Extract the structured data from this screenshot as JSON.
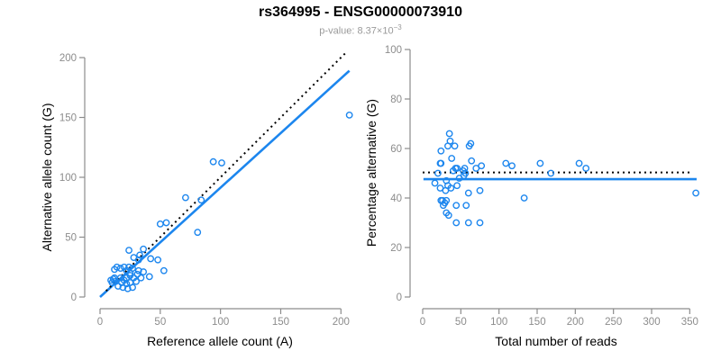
{
  "header": {
    "title": "rs364995 - ENSG00000073910",
    "subtitle_prefix": "p-value: 8.37×10",
    "subtitle_exponent": "−3"
  },
  "colors": {
    "accent_blue": "#1C86EE",
    "dotted_black": "#000000",
    "axis_gray": "#8C8C8C",
    "subtitle_gray": "#9A9A9A"
  },
  "chart_data": [
    {
      "type": "scatter",
      "panel": "left",
      "xlabel": "Reference allele count (A)",
      "ylabel": "Alternative allele count (G)",
      "xlim": [
        0,
        207
      ],
      "ylim": [
        0,
        207
      ],
      "xticks": [
        0,
        50,
        100,
        150,
        200
      ],
      "yticks": [
        0,
        50,
        100,
        150,
        200
      ],
      "grid": false,
      "points": [
        [
          207,
          152
        ],
        [
          94,
          113
        ],
        [
          101,
          112
        ],
        [
          71,
          83
        ],
        [
          84,
          81
        ],
        [
          81,
          54
        ],
        [
          50,
          61
        ],
        [
          55,
          62
        ],
        [
          24,
          39
        ],
        [
          36,
          40
        ],
        [
          28,
          33
        ],
        [
          33,
          35
        ],
        [
          32,
          31
        ],
        [
          42,
          32
        ],
        [
          48,
          31
        ],
        [
          53,
          22
        ],
        [
          41,
          17
        ],
        [
          12,
          23
        ],
        [
          14,
          25
        ],
        [
          17,
          24
        ],
        [
          20,
          25
        ],
        [
          22,
          22
        ],
        [
          24,
          25
        ],
        [
          27,
          24
        ],
        [
          25,
          20
        ],
        [
          32,
          22
        ],
        [
          36,
          21
        ],
        [
          34,
          16
        ],
        [
          31,
          19
        ],
        [
          28,
          16
        ],
        [
          25,
          18
        ],
        [
          22,
          16
        ],
        [
          30,
          13
        ],
        [
          25,
          12
        ],
        [
          22,
          11
        ],
        [
          18,
          12
        ],
        [
          13,
          13
        ],
        [
          10,
          12
        ],
        [
          9,
          14
        ],
        [
          11,
          15
        ],
        [
          12,
          16
        ],
        [
          15,
          9
        ],
        [
          19,
          8
        ],
        [
          23,
          7
        ],
        [
          27,
          8
        ],
        [
          17,
          16
        ],
        [
          20,
          14
        ]
      ],
      "lines": [
        {
          "name": "regression-fit-line",
          "style": "solid",
          "x1": 0,
          "y1": 0,
          "x2": 207,
          "y2": 189
        },
        {
          "name": "identity-line",
          "style": "dotted",
          "x1": 5,
          "y1": 5,
          "x2": 204,
          "y2": 204
        }
      ]
    },
    {
      "type": "scatter",
      "panel": "right",
      "xlabel": "Total number of reads",
      "ylabel": "Percentage alternative (G)",
      "xlim": [
        0,
        360
      ],
      "ylim": [
        0,
        100
      ],
      "xticks": [
        0,
        50,
        100,
        150,
        200,
        250,
        300,
        350
      ],
      "yticks": [
        0,
        20,
        40,
        60,
        80,
        100
      ],
      "grid": false,
      "points": [
        [
          358,
          42
        ],
        [
          205,
          54
        ],
        [
          214,
          52
        ],
        [
          154,
          54
        ],
        [
          168,
          50
        ],
        [
          133,
          40
        ],
        [
          109,
          54
        ],
        [
          117,
          53
        ],
        [
          35,
          66
        ],
        [
          36,
          63
        ],
        [
          33,
          61
        ],
        [
          42,
          61
        ],
        [
          61,
          61
        ],
        [
          63,
          62
        ],
        [
          24,
          59
        ],
        [
          38,
          56
        ],
        [
          64,
          55
        ],
        [
          77,
          53
        ],
        [
          70,
          52
        ],
        [
          45,
          52
        ],
        [
          43,
          52
        ],
        [
          40,
          51
        ],
        [
          53,
          51
        ],
        [
          56,
          50
        ],
        [
          54,
          49
        ],
        [
          55,
          52
        ],
        [
          20,
          50
        ],
        [
          48,
          48
        ],
        [
          16,
          46
        ],
        [
          31,
          47
        ],
        [
          33,
          45
        ],
        [
          37,
          44
        ],
        [
          45,
          45
        ],
        [
          23,
          44
        ],
        [
          30,
          43
        ],
        [
          60,
          42
        ],
        [
          75,
          43
        ],
        [
          23,
          54
        ],
        [
          24,
          54
        ],
        [
          24,
          39
        ],
        [
          26,
          39
        ],
        [
          29,
          38
        ],
        [
          31,
          39
        ],
        [
          27,
          37
        ],
        [
          44,
          37
        ],
        [
          57,
          37
        ],
        [
          31,
          34
        ],
        [
          34,
          33
        ],
        [
          44,
          30
        ],
        [
          60,
          30
        ],
        [
          75,
          30
        ]
      ],
      "lines": [
        {
          "name": "mean-percentage-line",
          "style": "solid",
          "x1": 1,
          "y1": 47.6,
          "x2": 359,
          "y2": 47.6
        },
        {
          "name": "expected-50-line",
          "style": "dotted",
          "x1": 0,
          "y1": 50.3,
          "x2": 352,
          "y2": 50.3
        }
      ]
    }
  ]
}
